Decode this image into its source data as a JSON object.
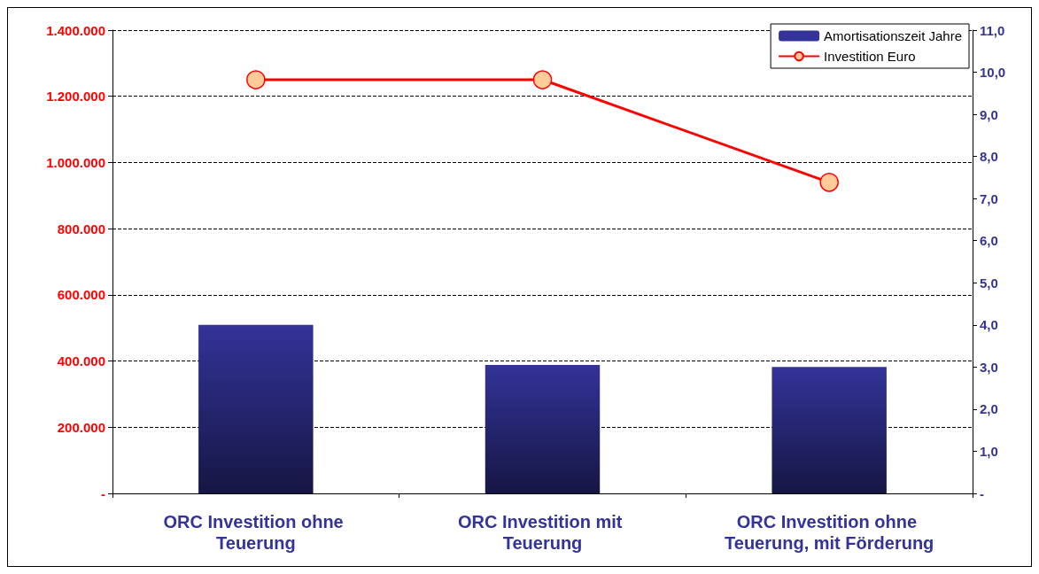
{
  "chart_data": {
    "type": "bar",
    "categories": [
      "ORC Investition ohne Teuerung",
      "ORC Investition mit Teuerung",
      "ORC Investition ohne Teuerung, mit Förderung"
    ],
    "series": [
      {
        "name": "Amortisationszeit Jahre",
        "axis": "y2",
        "color": "#333399",
        "values": [
          4.0,
          3.05,
          3.0
        ]
      },
      {
        "name": "Investition Euro",
        "type": "line",
        "color": "#ff0000",
        "values": [
          1250000,
          1250000,
          940000
        ]
      }
    ],
    "ylim": [
      0,
      1400000
    ],
    "yticks": [
      {
        "value": 0,
        "label": "-"
      },
      {
        "value": 200000,
        "label": "200.000"
      },
      {
        "value": 400000,
        "label": "400.000"
      },
      {
        "value": 600000,
        "label": "600.000"
      },
      {
        "value": 800000,
        "label": "800.000"
      },
      {
        "value": 1000000,
        "label": "1.000.000"
      },
      {
        "value": 1200000,
        "label": "1.200.000"
      },
      {
        "value": 1400000,
        "label": "1.400.000"
      }
    ],
    "y2lim": [
      0,
      11
    ],
    "y2ticks": [
      {
        "value": 0,
        "label": "-"
      },
      {
        "value": 1,
        "label": "1,0"
      },
      {
        "value": 2,
        "label": "2,0"
      },
      {
        "value": 3,
        "label": "3,0"
      },
      {
        "value": 4,
        "label": "4,0"
      },
      {
        "value": 5,
        "label": "5,0"
      },
      {
        "value": 6,
        "label": "6,0"
      },
      {
        "value": 7,
        "label": "7,0"
      },
      {
        "value": 8,
        "label": "8,0"
      },
      {
        "value": 9,
        "label": "9,0"
      },
      {
        "value": 10,
        "label": "10,0"
      },
      {
        "value": 11,
        "label": "11,0"
      }
    ],
    "grid": "y",
    "legend": "top right",
    "marker": "circle"
  }
}
